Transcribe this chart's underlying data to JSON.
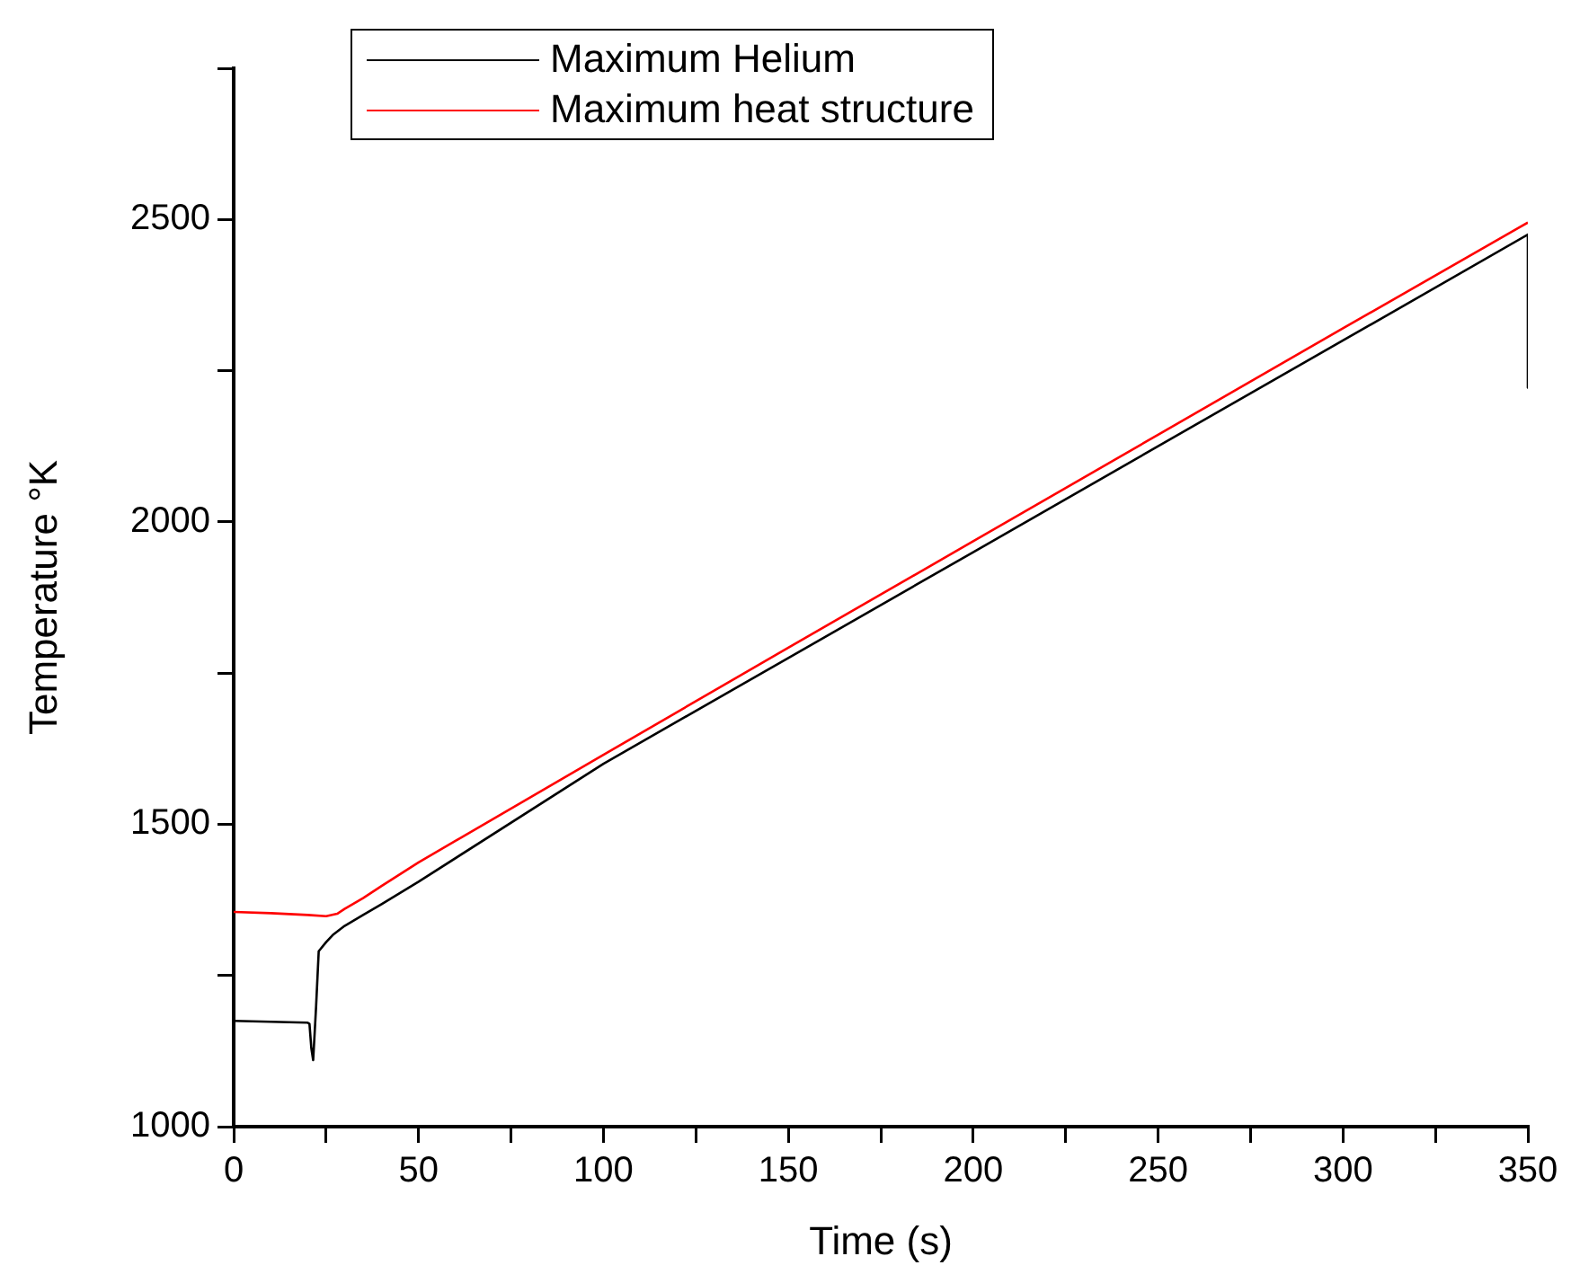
{
  "chart_data": {
    "type": "line",
    "xlabel": "Time (s)",
    "ylabel": "Temperature °K",
    "xlim": [
      0,
      350
    ],
    "ylim": [
      1000,
      2750
    ],
    "xticks": [
      0,
      {
        "value": 25,
        "label": null
      },
      50,
      {
        "value": 75,
        "label": null
      },
      100,
      {
        "value": 125,
        "label": null
      },
      150,
      {
        "value": 175,
        "label": null
      },
      200,
      {
        "value": 225,
        "label": null
      },
      250,
      {
        "value": 275,
        "label": null
      },
      300,
      {
        "value": 325,
        "label": null
      },
      350
    ],
    "yticks": [
      1000,
      {
        "value": 1250,
        "label": null
      },
      1500,
      {
        "value": 1750,
        "label": null
      },
      2000,
      {
        "value": 2250,
        "label": null
      },
      2500,
      {
        "value": 2750,
        "label": null
      }
    ],
    "grid": false,
    "legend": "top",
    "marker": "none",
    "line_style": "solid",
    "series": [
      {
        "name": "Maximum Helium",
        "color": "#000000",
        "x": [
          0,
          20,
          20.5,
          21,
          21.5,
          22.3,
          23,
          25,
          27,
          30,
          35,
          40,
          50,
          100,
          150,
          200,
          250,
          300,
          350,
          350
        ],
        "values": [
          1175,
          1172,
          1170,
          1130,
          1110,
          1200,
          1290,
          1305,
          1318,
          1332,
          1350,
          1368,
          1405,
          1600,
          1775,
          1950,
          2125,
          2300,
          2475,
          2222
        ]
      },
      {
        "name": "Maximum heat structure",
        "color": "#ff0000",
        "x": [
          0,
          10,
          20,
          25,
          28,
          30,
          35,
          40,
          50,
          100,
          150,
          200,
          250,
          300,
          350
        ],
        "values": [
          1355,
          1353,
          1350,
          1348,
          1352,
          1360,
          1378,
          1398,
          1437,
          1615,
          1792,
          1968,
          2144,
          2320,
          2495
        ]
      }
    ]
  }
}
